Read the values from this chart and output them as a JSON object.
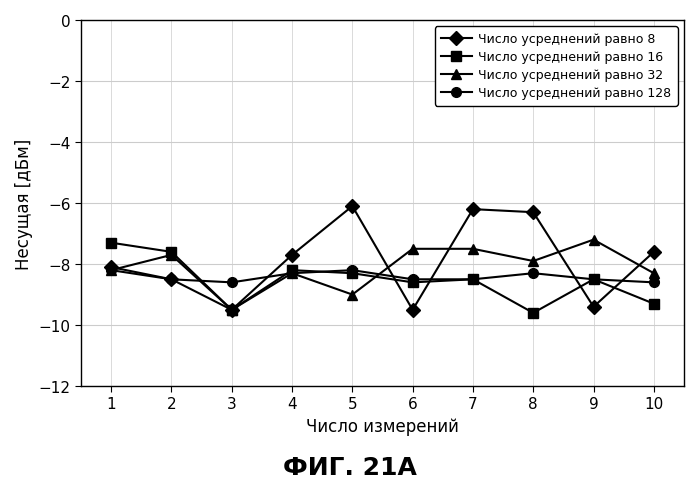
{
  "x": [
    1,
    2,
    3,
    4,
    5,
    6,
    7,
    8,
    9,
    10
  ],
  "series": {
    "8": [
      -8.1,
      -8.5,
      -9.5,
      -7.7,
      -6.1,
      -9.5,
      -6.2,
      -6.3,
      -9.4,
      -7.6
    ],
    "16": [
      -7.3,
      -7.6,
      -9.5,
      -8.2,
      -8.3,
      -8.6,
      -8.5,
      -9.6,
      -8.5,
      -9.3
    ],
    "32": [
      -8.2,
      -7.7,
      -9.5,
      -8.3,
      -9.0,
      -7.5,
      -7.5,
      -7.9,
      -7.2,
      -8.3
    ],
    "128": [
      -8.2,
      -8.5,
      -8.6,
      -8.3,
      -8.2,
      -8.5,
      -8.5,
      -8.3,
      -8.5,
      -8.6
    ]
  },
  "labels": {
    "8": "Число усреднений равно 8",
    "16": "Число усреднений равно 16",
    "32": "Число усреднений равно 32",
    "128": "Число усреднений равно 128"
  },
  "markers": {
    "8": "D",
    "16": "s",
    "32": "^",
    "128": "o"
  },
  "xlabel": "Число измерений",
  "ylabel": "Несущая [дБм]",
  "fig_label": "ФИГ. 21А",
  "ylim": [
    -12,
    0
  ],
  "xlim": [
    0.5,
    10.5
  ],
  "yticks": [
    0,
    -2,
    -4,
    -6,
    -8,
    -10,
    -12
  ],
  "xticks": [
    1,
    2,
    3,
    4,
    5,
    6,
    7,
    8,
    9,
    10
  ],
  "line_color": "#000000",
  "bg_color": "#ffffff",
  "grid_color": "#cccccc",
  "legend_fontsize": 9,
  "axis_fontsize": 11,
  "label_fontsize": 12,
  "title_fontsize": 18,
  "tick_fontsize": 11,
  "marker_size": 7,
  "line_width": 1.5
}
